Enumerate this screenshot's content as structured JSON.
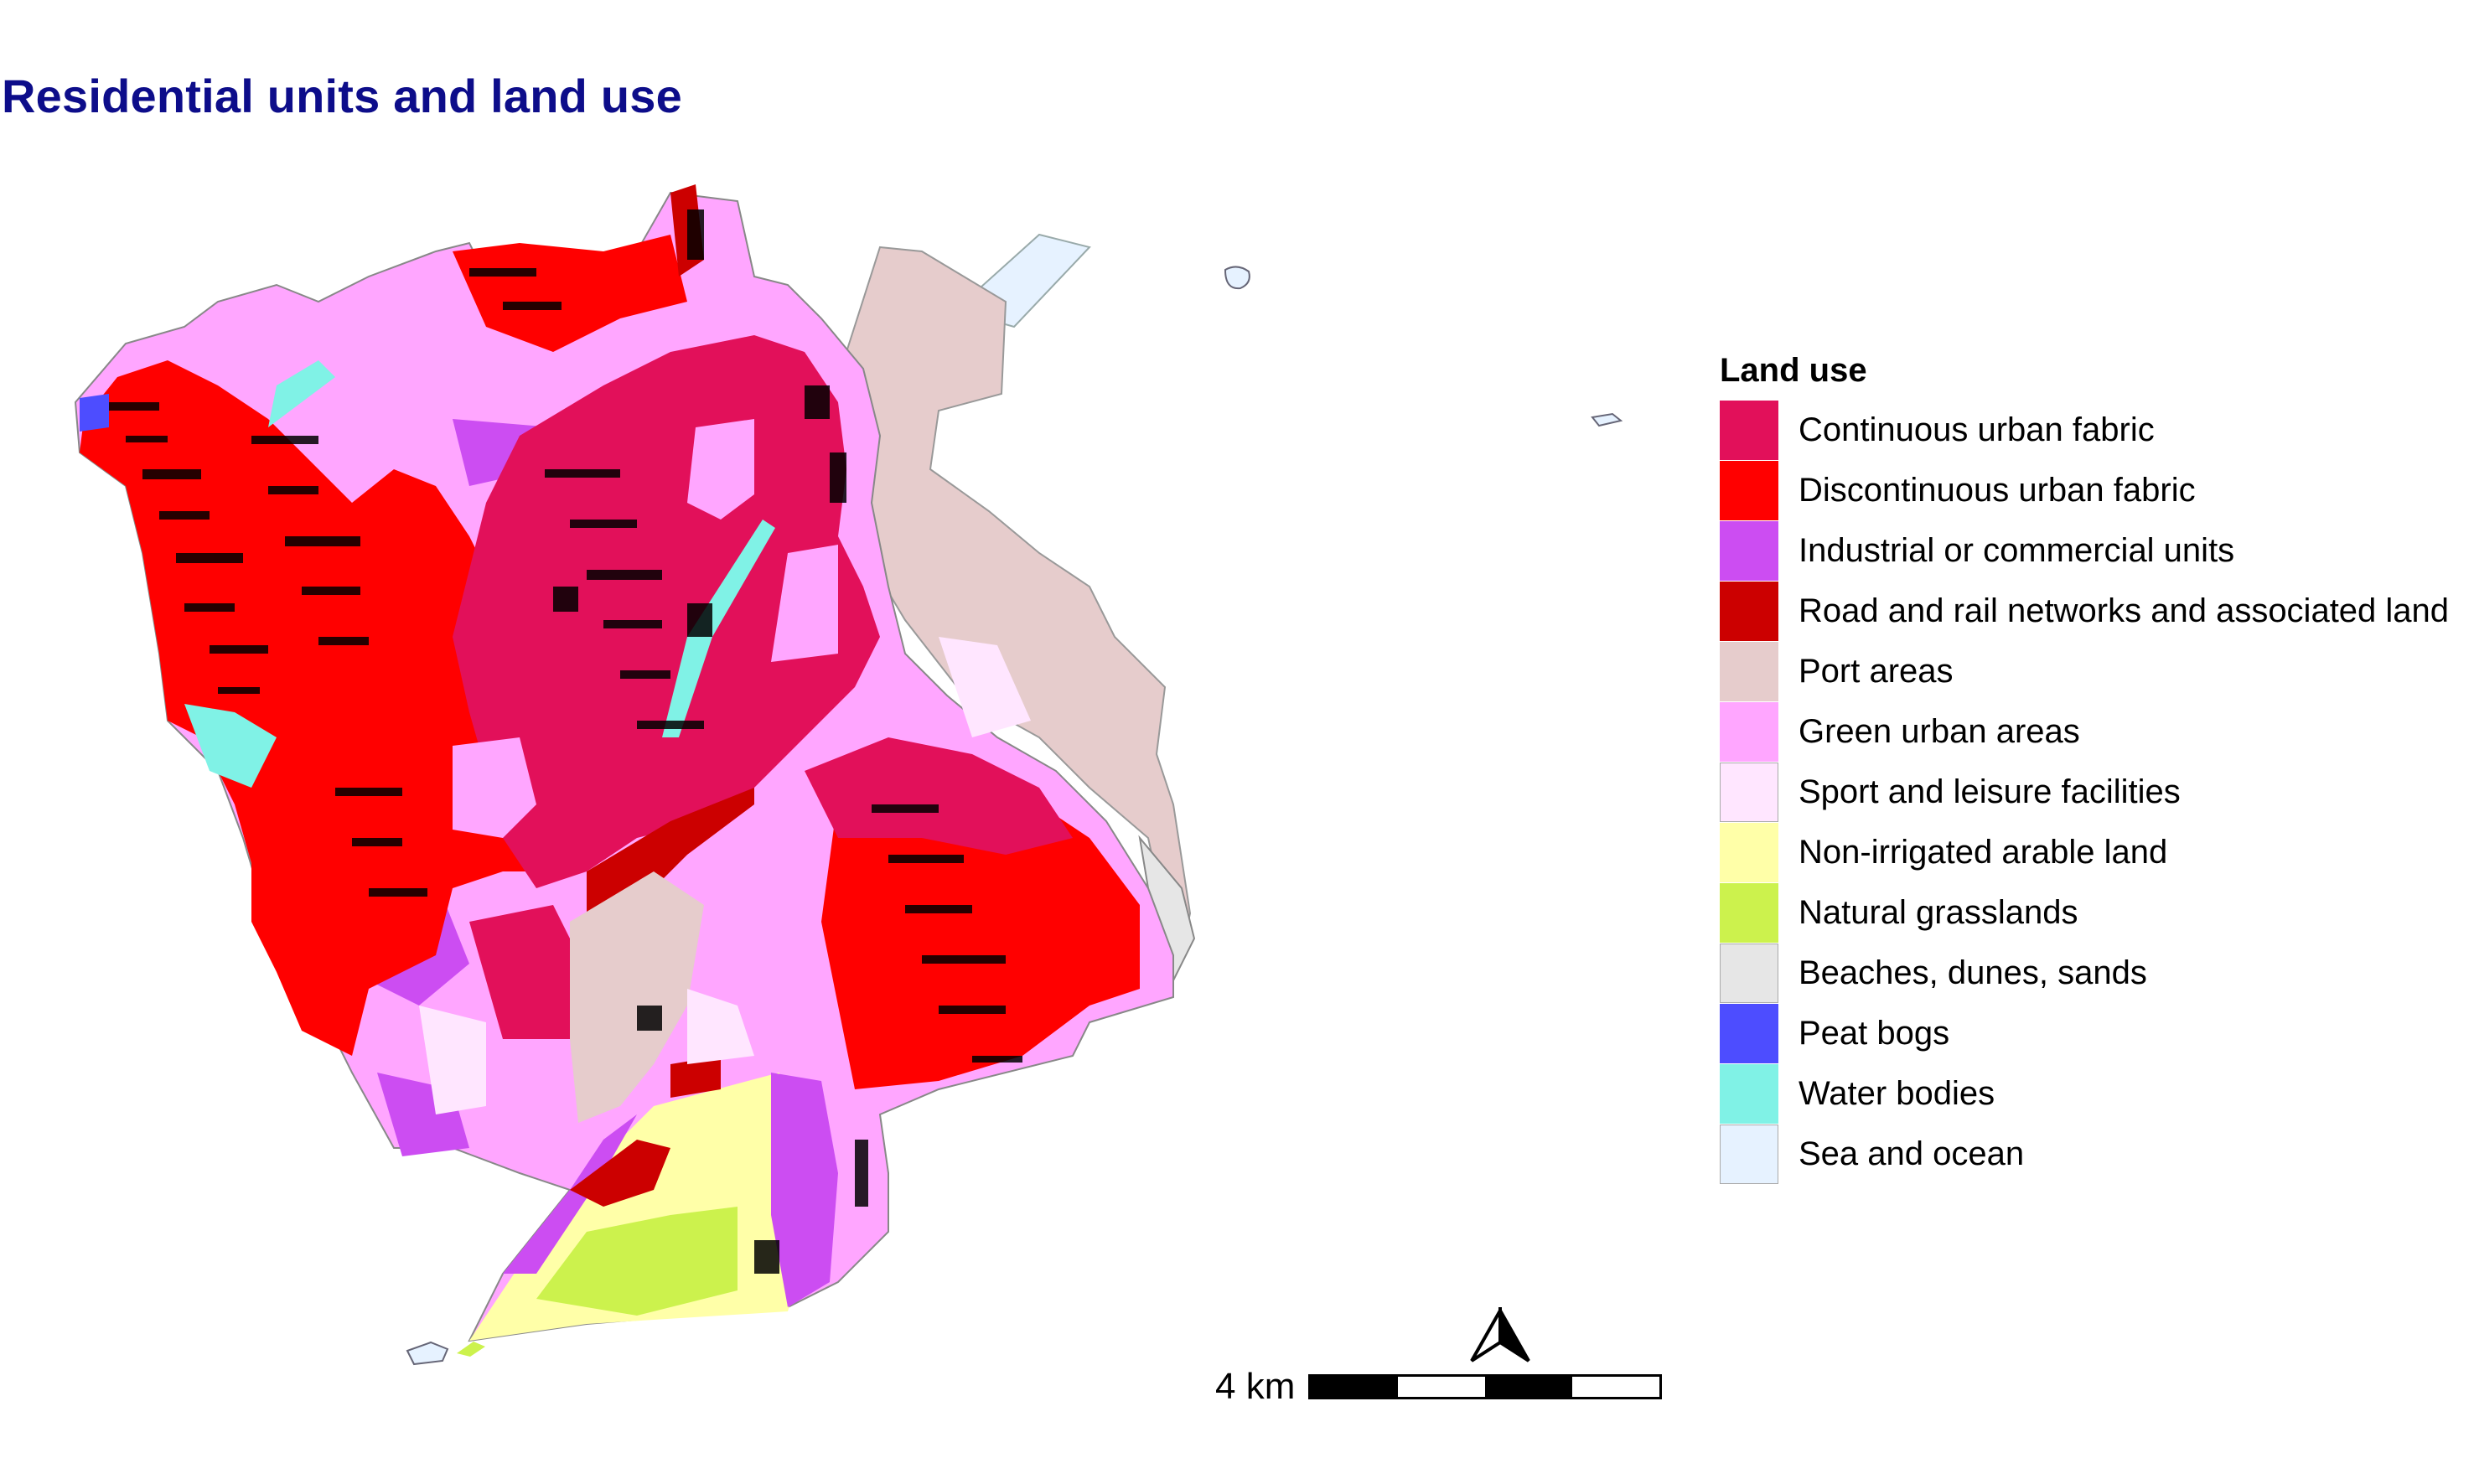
{
  "title": "Residential units and land use",
  "legend": {
    "title": "Land use",
    "items": [
      {
        "label": "Continuous urban fabric",
        "color": "#e2105a"
      },
      {
        "label": "Discontinuous urban fabric",
        "color": "#ff0000"
      },
      {
        "label": "Industrial or commercial units",
        "color": "#cc4df2"
      },
      {
        "label": "Road and rail networks and associated land",
        "color": "#cc0000"
      },
      {
        "label": "Port areas",
        "color": "#e6cccc"
      },
      {
        "label": "Green urban areas",
        "color": "#ffa6ff"
      },
      {
        "label": "Sport and leisure facilities",
        "color": "#ffe6ff"
      },
      {
        "label": "Non-irrigated arable land",
        "color": "#ffffa8"
      },
      {
        "label": "Natural grasslands",
        "color": "#ccf24d"
      },
      {
        "label": "Beaches, dunes, sands",
        "color": "#e6e6e6"
      },
      {
        "label": "Peat bogs",
        "color": "#4d4dff"
      },
      {
        "label": "Water bodies",
        "color": "#80f2e6"
      },
      {
        "label": "Sea and ocean",
        "color": "#e6f2ff"
      }
    ]
  },
  "scale_bar": {
    "label": "4 km"
  },
  "north_arrow": {
    "icon": "north-arrow-icon"
  },
  "colors": {
    "title": "#0d0d8a",
    "building": "#000000"
  }
}
